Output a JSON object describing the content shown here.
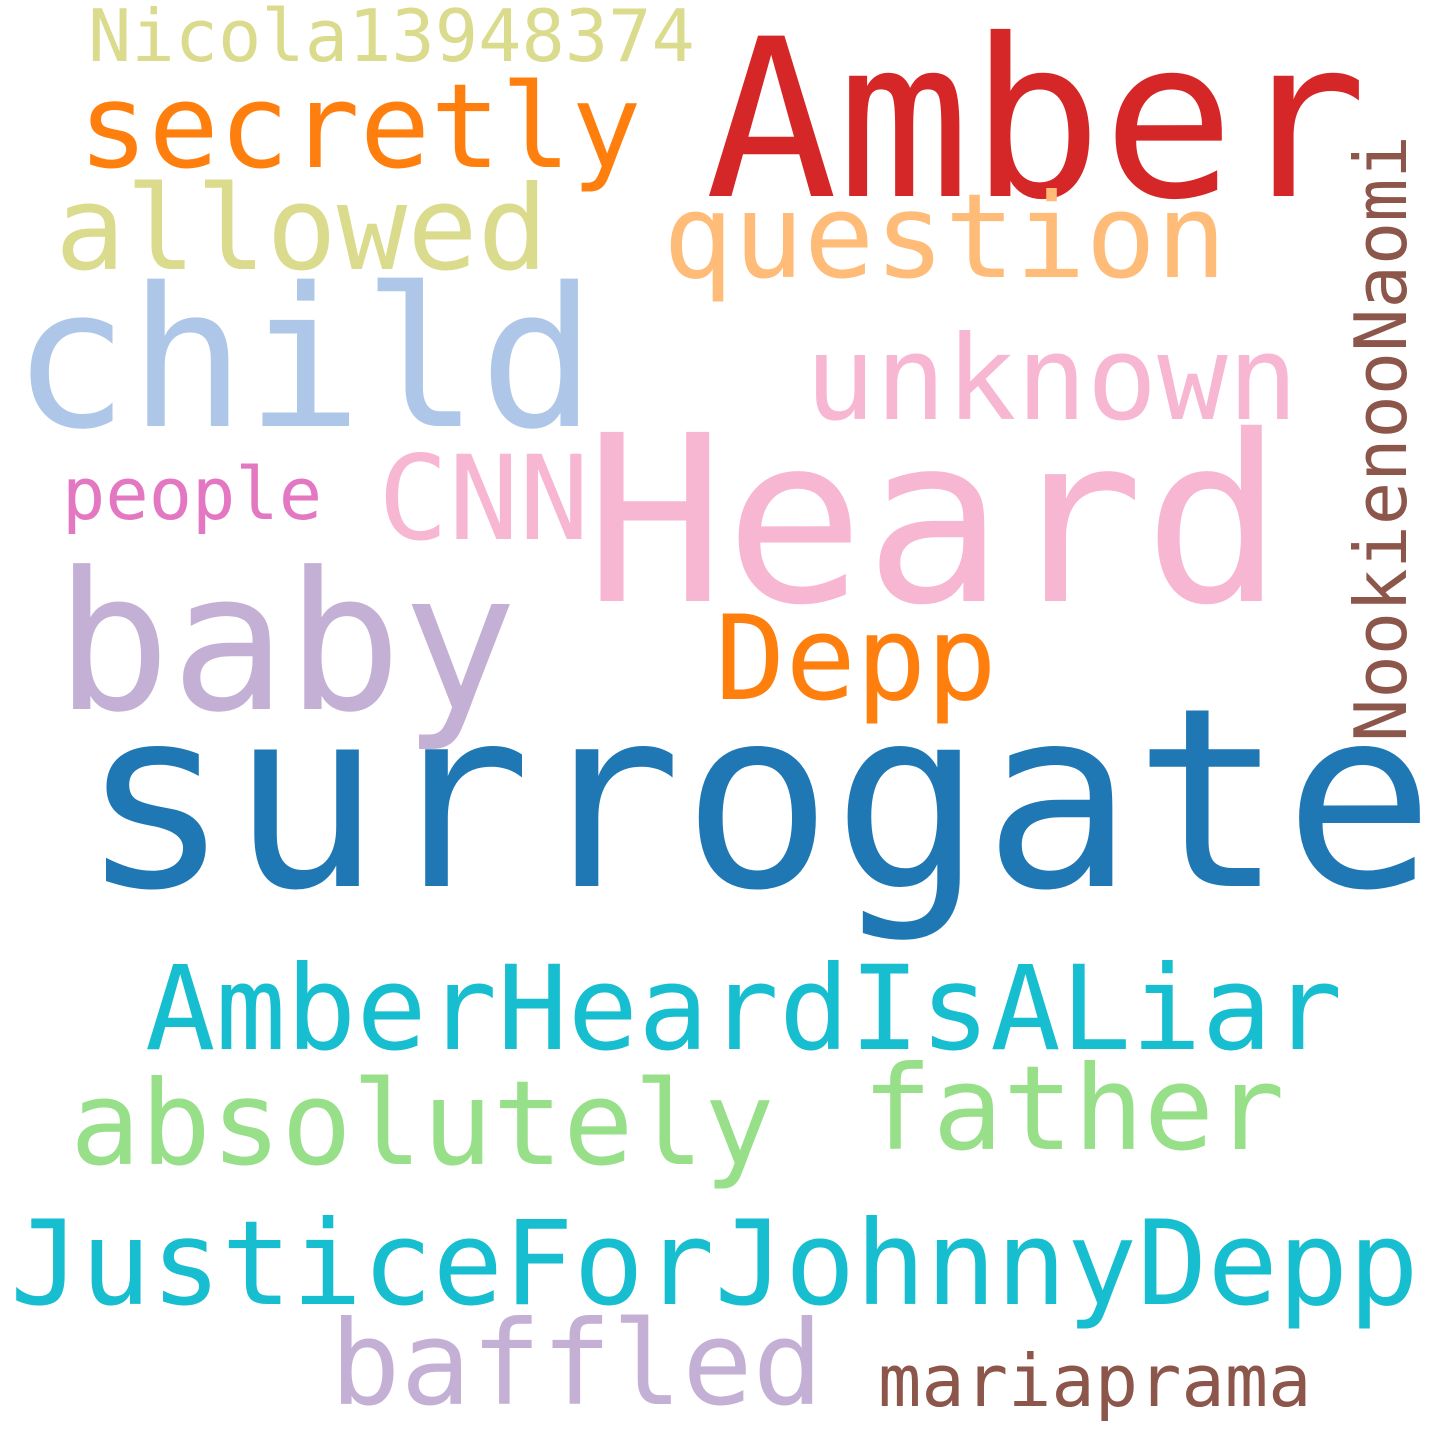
{
  "words": [
    {
      "text": "surrogate",
      "color": "#1f77b4"
    },
    {
      "text": "Heard",
      "color": "#f7b6d2"
    },
    {
      "text": "Amber",
      "color": "#d62728"
    },
    {
      "text": "child",
      "color": "#aec7e8"
    },
    {
      "text": "baby",
      "color": "#c5b0d5"
    },
    {
      "text": "JusticeForJohnnyDepp",
      "color": "#17becf"
    },
    {
      "text": "AmberHeardIsALiar",
      "color": "#17becf"
    },
    {
      "text": "absolutely",
      "color": "#98df8a"
    },
    {
      "text": "father",
      "color": "#98df8a"
    },
    {
      "text": "question",
      "color": "#ffbb78"
    },
    {
      "text": "unknown",
      "color": "#f7b6d2"
    },
    {
      "text": "secretly",
      "color": "#ff7f0e"
    },
    {
      "text": "allowed",
      "color": "#dbdb8d"
    },
    {
      "text": "baffled",
      "color": "#c5b0d5"
    },
    {
      "text": "Depp",
      "color": "#ff7f0e"
    },
    {
      "text": "CNN",
      "color": "#f7b6d2"
    },
    {
      "text": "NookienooNaomi",
      "color": "#8c564b"
    },
    {
      "text": "mariaprama",
      "color": "#8c564b"
    },
    {
      "text": "Nicola13948374",
      "color": "#dbdb8d"
    },
    {
      "text": "people",
      "color": "#e377c2"
    }
  ]
}
